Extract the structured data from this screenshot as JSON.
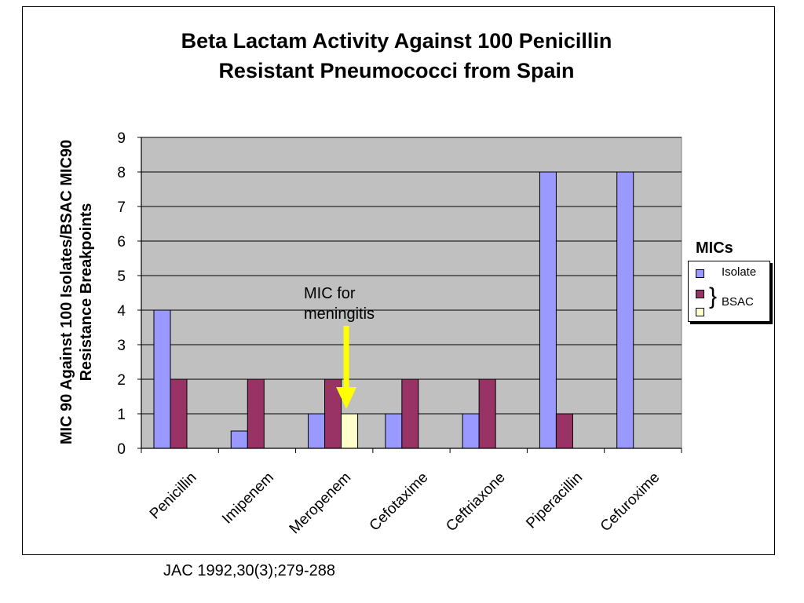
{
  "chart_data": {
    "type": "bar",
    "title_lines": [
      "Beta Lactam Activity Against 100 Penicillin",
      "Resistant Pneumococci from Spain"
    ],
    "ylabel_lines": [
      "MIC 90 Against 100 Isolates/BSAC MIC90",
      "Resistance Breakpoints"
    ],
    "xlabel": "",
    "categories": [
      "Penicillin",
      "Imipenem",
      "Meropenem",
      "Cefotaxime",
      "Ceftriaxone",
      "Piperacillin",
      "Cefuroxime"
    ],
    "series": [
      {
        "color": "#9999ff",
        "values": [
          4,
          0.5,
          1,
          1,
          1,
          8,
          8
        ]
      },
      {
        "color": "#993366",
        "values": [
          2,
          2,
          2,
          2,
          2,
          1,
          null
        ]
      },
      {
        "color": "#ffffcc",
        "values": [
          null,
          null,
          1,
          null,
          null,
          null,
          null
        ]
      }
    ],
    "ylim": [
      0,
      9
    ],
    "yticks": [
      "0",
      "1",
      "2",
      "3",
      "4",
      "5",
      "6",
      "7",
      "8",
      "9"
    ],
    "grid": true,
    "plot_background": "#c0c0c0",
    "legend": {
      "title": "MICs",
      "position": "right",
      "items": [
        {
          "label": "Isolate",
          "color": "#9999ff"
        },
        {
          "label": "",
          "color": "#993366"
        },
        {
          "label": "",
          "color": "#ffffcc"
        }
      ],
      "group_label": "BSAC"
    },
    "annotation": {
      "lines": [
        "MIC for",
        "meningitis"
      ],
      "arrow_color": "#ffff00",
      "target_category": "Meropenem"
    }
  },
  "citation": "JAC 1992,30(3);279-288"
}
